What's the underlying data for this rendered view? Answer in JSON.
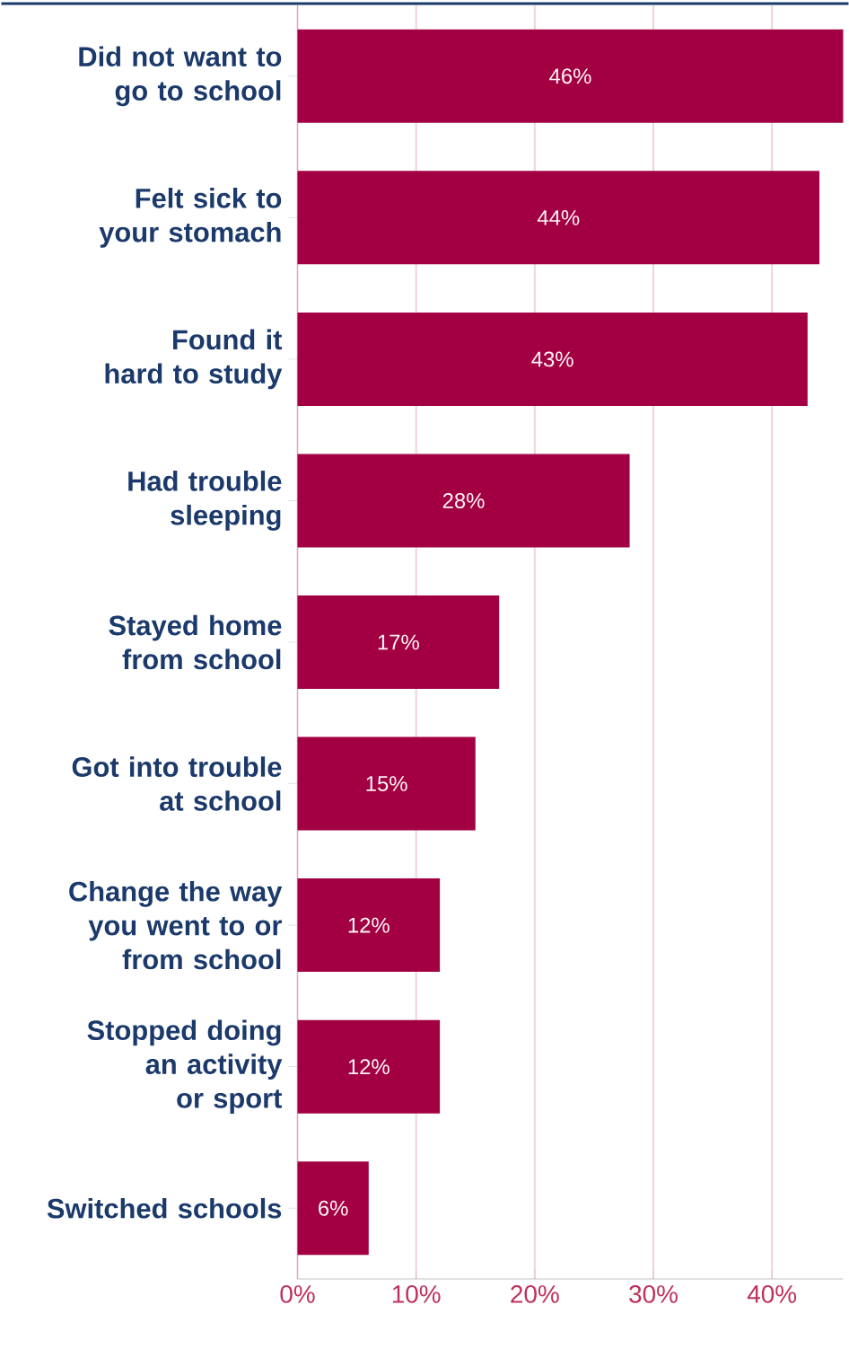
{
  "chart_data": {
    "type": "bar",
    "orientation": "horizontal",
    "categories": [
      "Did not want to go to school",
      "Felt sick to your stomach",
      "Found it hard to study",
      "Had trouble sleeping",
      "Stayed home from school",
      "Got into trouble at school",
      "Change the way you went to or from school",
      "Stopped doing an activity or sport",
      "Switched schools"
    ],
    "values": [
      46,
      44,
      43,
      28,
      17,
      15,
      12,
      12,
      6
    ],
    "value_labels": [
      "46%",
      "44%",
      "43%",
      "28%",
      "17%",
      "15%",
      "12%",
      "12%",
      "6%"
    ],
    "color": "#a30044",
    "xlim": [
      0,
      46
    ],
    "xticks": [
      {
        "value": 0,
        "label": "0%"
      },
      {
        "value": 10,
        "label": "10%"
      },
      {
        "value": 20,
        "label": "20%"
      },
      {
        "value": 30,
        "label": "30%"
      },
      {
        "value": 40,
        "label": "40%"
      }
    ],
    "grid": "x"
  }
}
